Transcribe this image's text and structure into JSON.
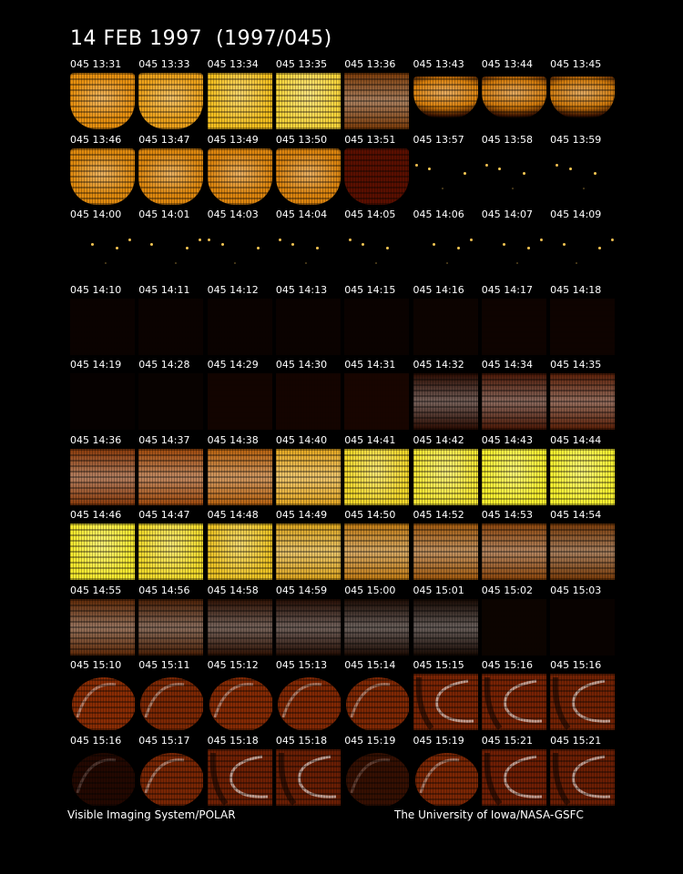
{
  "title": "14 FEB 1997  (1997/045)",
  "footer": {
    "left": "Visible Imaging System/POLAR",
    "right": "The University of Iowa/NASA-GSFC"
  },
  "frames": [
    {
      "label": "045 13:31",
      "kind": "earth",
      "color": "#e8900f"
    },
    {
      "label": "045 13:33",
      "kind": "earth",
      "color": "#eea21a"
    },
    {
      "label": "045 13:34",
      "kind": "full",
      "color": "#f6c01e"
    },
    {
      "label": "045 13:35",
      "kind": "full",
      "color": "#fad53a"
    },
    {
      "label": "045 13:36",
      "kind": "noisy",
      "color": "#7a3a08"
    },
    {
      "label": "045 13:43",
      "kind": "limb",
      "color": "#d9800c"
    },
    {
      "label": "045 13:44",
      "kind": "limb",
      "color": "#d27a0b"
    },
    {
      "label": "045 13:45",
      "kind": "limb",
      "color": "#d07a0c"
    },
    {
      "label": "045 13:46",
      "kind": "earth",
      "color": "#e08a0e"
    },
    {
      "label": "045 13:47",
      "kind": "earth",
      "color": "#df880e"
    },
    {
      "label": "045 13:49",
      "kind": "earth",
      "color": "#de860e"
    },
    {
      "label": "045 13:50",
      "kind": "earth",
      "color": "#dc840e"
    },
    {
      "label": "045 13:51",
      "kind": "solid",
      "color": "#5a0f00"
    },
    {
      "label": "045 13:57",
      "kind": "stars",
      "color": "#000000"
    },
    {
      "label": "045 13:58",
      "kind": "stars",
      "color": "#000000"
    },
    {
      "label": "045 13:59",
      "kind": "stars",
      "color": "#000000"
    },
    {
      "label": "045 14:00",
      "kind": "stars",
      "color": "#000000"
    },
    {
      "label": "045 14:01",
      "kind": "stars",
      "color": "#000000"
    },
    {
      "label": "045 14:03",
      "kind": "stars",
      "color": "#000000"
    },
    {
      "label": "045 14:04",
      "kind": "stars",
      "color": "#000000"
    },
    {
      "label": "045 14:05",
      "kind": "stars",
      "color": "#000000"
    },
    {
      "label": "045 14:06",
      "kind": "stars",
      "color": "#000000"
    },
    {
      "label": "045 14:07",
      "kind": "stars",
      "color": "#000000"
    },
    {
      "label": "045 14:09",
      "kind": "stars",
      "color": "#000000"
    },
    {
      "label": "045 14:10",
      "kind": "dark",
      "color": "#0a0200"
    },
    {
      "label": "045 14:11",
      "kind": "dark",
      "color": "#0a0200"
    },
    {
      "label": "045 14:12",
      "kind": "dark",
      "color": "#0a0200"
    },
    {
      "label": "045 14:13",
      "kind": "dark",
      "color": "#0a0200"
    },
    {
      "label": "045 14:15",
      "kind": "dark",
      "color": "#0a0200"
    },
    {
      "label": "045 14:16",
      "kind": "dark",
      "color": "#0c0300"
    },
    {
      "label": "045 14:17",
      "kind": "dark",
      "color": "#0e0300"
    },
    {
      "label": "045 14:18",
      "kind": "dark",
      "color": "#0e0300"
    },
    {
      "label": "045 14:19",
      "kind": "dark",
      "color": "#060100"
    },
    {
      "label": "045 14:28",
      "kind": "dark",
      "color": "#080200"
    },
    {
      "label": "045 14:29",
      "kind": "dark",
      "color": "#120400"
    },
    {
      "label": "045 14:30",
      "kind": "dark",
      "color": "#140400"
    },
    {
      "label": "045 14:31",
      "kind": "dark",
      "color": "#180500"
    },
    {
      "label": "045 14:32",
      "kind": "noisy",
      "color": "#2a0a00"
    },
    {
      "label": "045 14:34",
      "kind": "noisy",
      "color": "#4a1604"
    },
    {
      "label": "045 14:35",
      "kind": "noisy",
      "color": "#5a1e06"
    },
    {
      "label": "045 14:36",
      "kind": "noisy",
      "color": "#8a3a0a"
    },
    {
      "label": "045 14:37",
      "kind": "noisy",
      "color": "#a04a0c"
    },
    {
      "label": "045 14:38",
      "kind": "noisy",
      "color": "#b8620e"
    },
    {
      "label": "045 14:40",
      "kind": "noisy",
      "color": "#e6a820"
    },
    {
      "label": "045 14:41",
      "kind": "full",
      "color": "#f4d82a"
    },
    {
      "label": "045 14:42",
      "kind": "full",
      "color": "#f8e834"
    },
    {
      "label": "045 14:43",
      "kind": "full",
      "color": "#fcf22e"
    },
    {
      "label": "045 14:44",
      "kind": "full",
      "color": "#fcf430"
    },
    {
      "label": "045 14:46",
      "kind": "full",
      "color": "#f8ea2e"
    },
    {
      "label": "045 14:47",
      "kind": "full",
      "color": "#f4dc2c"
    },
    {
      "label": "045 14:48",
      "kind": "full",
      "color": "#eec424"
    },
    {
      "label": "045 14:49",
      "kind": "noisy",
      "color": "#dca41c"
    },
    {
      "label": "045 14:50",
      "kind": "noisy",
      "color": "#c07a12"
    },
    {
      "label": "045 14:52",
      "kind": "noisy",
      "color": "#a0580c"
    },
    {
      "label": "045 14:53",
      "kind": "noisy",
      "color": "#8a440a"
    },
    {
      "label": "045 14:54",
      "kind": "noisy",
      "color": "#783a08"
    },
    {
      "label": "045 14:55",
      "kind": "noisy",
      "color": "#5e2806"
    },
    {
      "label": "045 14:56",
      "kind": "noisy",
      "color": "#4a1e04"
    },
    {
      "label": "045 14:58",
      "kind": "noisy",
      "color": "#2e1002"
    },
    {
      "label": "045 14:59",
      "kind": "noisy",
      "color": "#240c02"
    },
    {
      "label": "045 15:00",
      "kind": "noisy",
      "color": "#1c0a02"
    },
    {
      "label": "045 15:01",
      "kind": "noisy",
      "color": "#160801"
    },
    {
      "label": "045 15:02",
      "kind": "dark",
      "color": "#0c0400"
    },
    {
      "label": "045 15:03",
      "kind": "dark",
      "color": "#080200"
    },
    {
      "label": "045 15:10",
      "kind": "globe",
      "color": "#8a2c04"
    },
    {
      "label": "045 15:11",
      "kind": "globe",
      "color": "#7e2804"
    },
    {
      "label": "045 15:12",
      "kind": "globe",
      "color": "#862a04"
    },
    {
      "label": "045 15:13",
      "kind": "globe",
      "color": "#822804"
    },
    {
      "label": "045 15:14",
      "kind": "globe",
      "color": "#802804"
    },
    {
      "label": "045 15:15",
      "kind": "oval",
      "color": "#7a2404"
    },
    {
      "label": "045 15:16",
      "kind": "oval",
      "color": "#782204"
    },
    {
      "label": "045 15:16",
      "kind": "oval",
      "color": "#742204"
    },
    {
      "label": "045 15:16",
      "kind": "dimglobe",
      "color": "#3a0e02"
    },
    {
      "label": "045 15:17",
      "kind": "globe",
      "color": "#7a2604"
    },
    {
      "label": "045 15:18",
      "kind": "oval",
      "color": "#702004"
    },
    {
      "label": "045 15:18",
      "kind": "oval",
      "color": "#6a1e04"
    },
    {
      "label": "045 15:19",
      "kind": "dimglobe",
      "color": "#5a1a04"
    },
    {
      "label": "045 15:19",
      "kind": "globe",
      "color": "#7c2604"
    },
    {
      "label": "045 15:21",
      "kind": "oval",
      "color": "#701e04"
    },
    {
      "label": "045 15:21",
      "kind": "oval",
      "color": "#6c1e04"
    }
  ]
}
